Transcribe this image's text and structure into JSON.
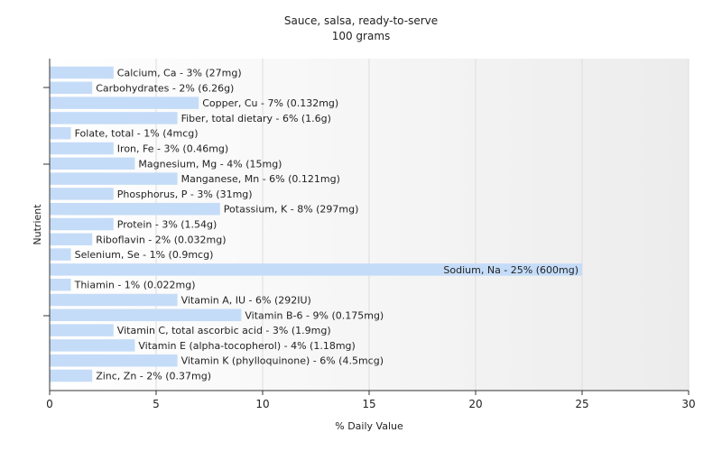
{
  "chart_data": {
    "type": "bar",
    "orientation": "horizontal",
    "title": "Sauce, salsa, ready-to-serve",
    "subtitle": "100 grams",
    "xlabel": "% Daily Value",
    "ylabel": "Nutrient",
    "xlim": [
      0,
      30
    ],
    "xticks": [
      0,
      5,
      10,
      15,
      20,
      25,
      30
    ],
    "bar_color": "#c5dcf8",
    "background_gradient": [
      "#ffffff",
      "#ececec"
    ],
    "categories": [
      "Calcium, Ca",
      "Carbohydrates",
      "Copper, Cu",
      "Fiber, total dietary",
      "Folate, total",
      "Iron, Fe",
      "Magnesium, Mg",
      "Manganese, Mn",
      "Phosphorus, P",
      "Potassium, K",
      "Protein",
      "Riboflavin",
      "Selenium, Se",
      "Sodium, Na",
      "Thiamin",
      "Vitamin A, IU",
      "Vitamin B-6",
      "Vitamin C, total ascorbic acid",
      "Vitamin E (alpha-tocopherol)",
      "Vitamin K (phylloquinone)",
      "Zinc, Zn"
    ],
    "values": [
      3,
      2,
      7,
      6,
      1,
      3,
      4,
      6,
      3,
      8,
      3,
      2,
      1,
      25,
      1,
      6,
      9,
      3,
      4,
      6,
      2
    ],
    "labels": [
      "Calcium, Ca - 3% (27mg)",
      "Carbohydrates - 2% (6.26g)",
      "Copper, Cu - 7% (0.132mg)",
      "Fiber, total dietary - 6% (1.6g)",
      "Folate, total - 1% (4mcg)",
      "Iron, Fe - 3% (0.46mg)",
      "Magnesium, Mg - 4% (15mg)",
      "Manganese, Mn - 6% (0.121mg)",
      "Phosphorus, P - 3% (31mg)",
      "Potassium, K - 8% (297mg)",
      "Protein - 3% (1.54g)",
      "Riboflavin - 2% (0.032mg)",
      "Selenium, Se - 1% (0.9mcg)",
      "Sodium, Na - 25% (600mg)",
      "Thiamin - 1% (0.022mg)",
      "Vitamin A, IU - 6% (292IU)",
      "Vitamin B-6 - 9% (0.175mg)",
      "Vitamin C, total ascorbic acid - 3% (1.9mg)",
      "Vitamin E (alpha-tocopherol) - 4% (1.18mg)",
      "Vitamin K (phylloquinone) - 6% (4.5mcg)",
      "Zinc, Zn - 2% (0.37mg)"
    ]
  }
}
